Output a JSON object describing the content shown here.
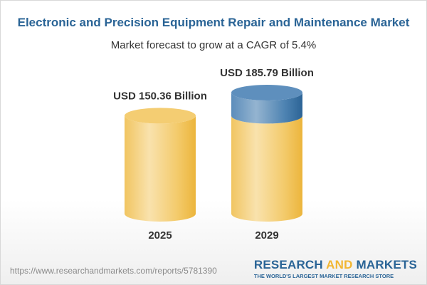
{
  "title": "Electronic and Precision Equipment Repair and Maintenance Market",
  "subtitle": "Market forecast to grow at a CAGR of 5.4%",
  "chart_data": {
    "type": "bar",
    "style": "3d-cylinder",
    "categories": [
      "2025",
      "2029"
    ],
    "values": [
      150.36,
      185.79
    ],
    "data_labels": [
      "USD 150.36 Billion",
      "USD 185.79 Billion"
    ],
    "unit": "USD Billion",
    "growth_highlight": "2029 increment above 2025 value shown in blue",
    "colors": {
      "base": "#f2c45a",
      "growth": "#4a7fae"
    }
  },
  "footer": {
    "url": "https://www.researchandmarkets.com/reports/5781390",
    "logo_part1": "RESEARCH ",
    "logo_part2": "AND",
    "logo_part3": " MARKETS",
    "tagline": "THE WORLD'S LARGEST MARKET RESEARCH STORE"
  }
}
